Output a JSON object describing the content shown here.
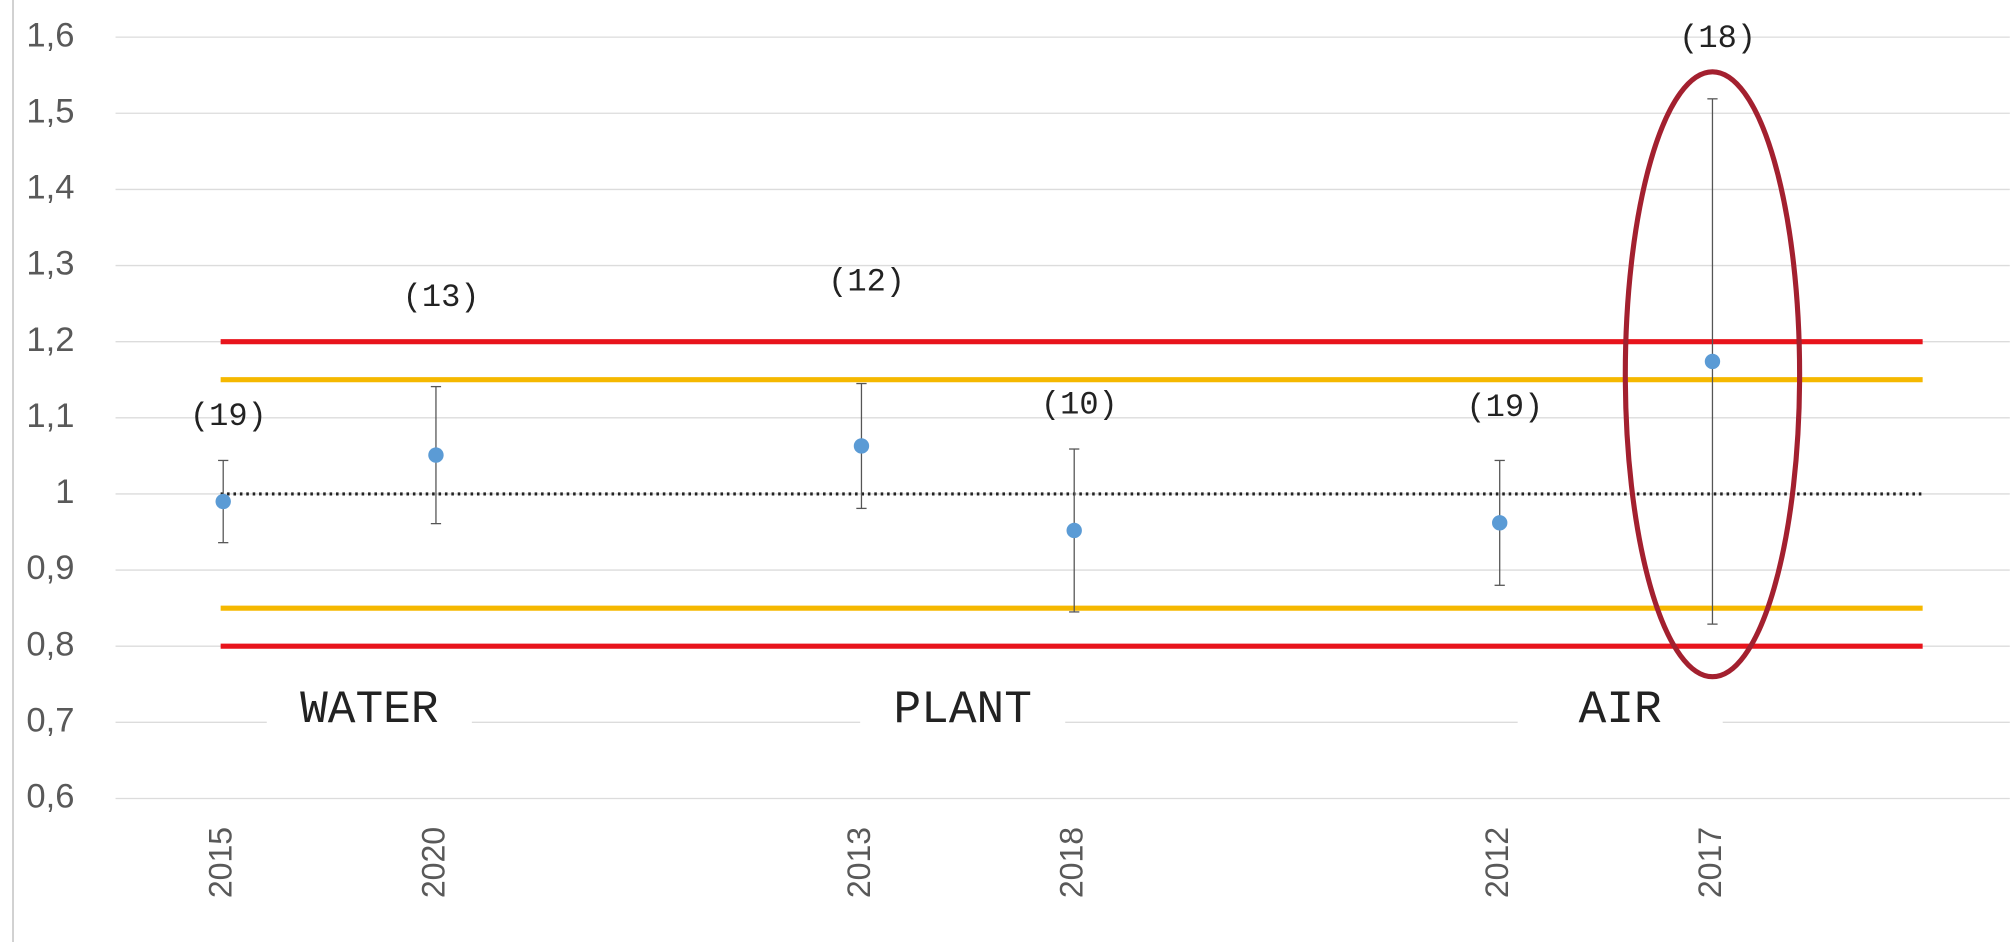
{
  "chart_data": {
    "type": "errorbar",
    "categories": [
      "2015",
      "2020",
      null,
      "2013",
      "2018",
      null,
      "2012",
      "2017",
      null
    ],
    "values": [
      0.99,
      1.051,
      null,
      1.063,
      0.952,
      null,
      0.962,
      1.174,
      null
    ],
    "errors": [
      0.054,
      0.09,
      null,
      0.082,
      0.107,
      null,
      0.082,
      0.345,
      null
    ],
    "count_labels": [
      "(19)",
      "(13)",
      null,
      "(12)",
      "(10)",
      null,
      "(19)",
      "(18)",
      null
    ],
    "color": "#5b9bd5",
    "groups": [
      "WATER",
      "PLANT",
      "AIR"
    ],
    "reference_lines": [
      {
        "value": 1.2,
        "color": "#e8141c",
        "style": "solid"
      },
      {
        "value": 1.15,
        "color": "#f5b800",
        "style": "solid"
      },
      {
        "value": 1,
        "color": "#222222",
        "style": "dotted"
      },
      {
        "value": 0.85,
        "color": "#f5b800",
        "style": "solid"
      },
      {
        "value": 0.8,
        "color": "#e8141c",
        "style": "solid"
      }
    ],
    "ylim": [
      0.6,
      1.6
    ],
    "yticks": [
      {
        "value": 0.6,
        "label": "0,6"
      },
      {
        "value": 0.7,
        "label": "0,7"
      },
      {
        "value": 0.8,
        "label": "0,8"
      },
      {
        "value": 0.9,
        "label": "0,9"
      },
      1,
      {
        "value": 1.1,
        "label": "1,1"
      },
      {
        "value": 1.2,
        "label": "1,2"
      },
      {
        "value": 1.3,
        "label": "1,3"
      },
      {
        "value": 1.4,
        "label": "1,4"
      },
      {
        "value": 1.5,
        "label": "1,5"
      },
      {
        "value": 1.6,
        "label": "1,6"
      }
    ],
    "grid": true
  }
}
